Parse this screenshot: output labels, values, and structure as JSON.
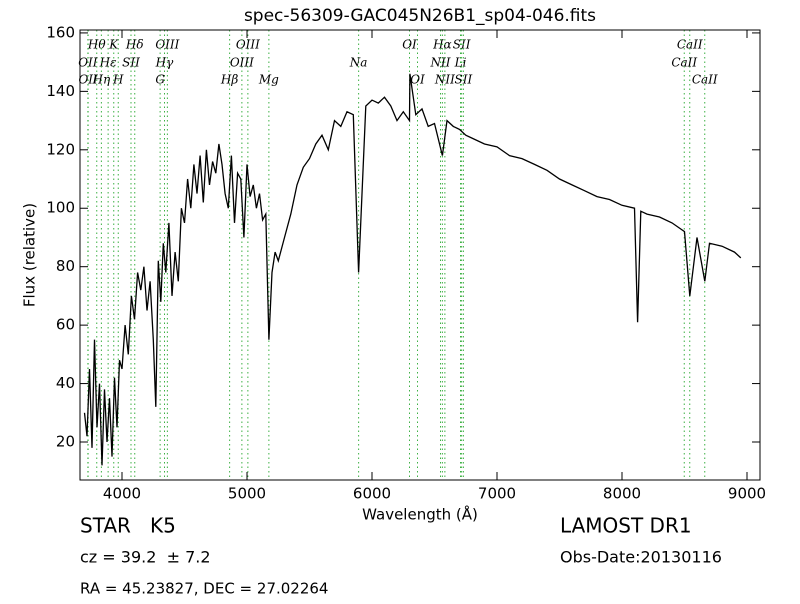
{
  "chart_data": {
    "type": "line",
    "title": "spec-56309-GAC045N26B1_sp04-046.fits",
    "x_label": "Wavelength (Å)",
    "y_label": "Flux (relative)",
    "color": "#000000",
    "line_color": "#3cb043",
    "xlim": [
      3664,
      9104
    ],
    "ylim": [
      7,
      161
    ],
    "xticks": [
      4000,
      5000,
      6000,
      7000,
      8000,
      9000
    ],
    "yticks": [
      20,
      40,
      60,
      80,
      100,
      120,
      140,
      160
    ],
    "x": [
      3700,
      3720,
      3740,
      3760,
      3780,
      3800,
      3820,
      3840,
      3860,
      3880,
      3900,
      3920,
      3940,
      3960,
      3980,
      4000,
      4025,
      4050,
      4075,
      4100,
      4125,
      4150,
      4175,
      4200,
      4225,
      4250,
      4270,
      4290,
      4310,
      4330,
      4350,
      4375,
      4400,
      4425,
      4450,
      4475,
      4500,
      4525,
      4550,
      4575,
      4600,
      4625,
      4650,
      4675,
      4700,
      4725,
      4750,
      4775,
      4800,
      4825,
      4850,
      4875,
      4900,
      4925,
      4950,
      4975,
      5000,
      5025,
      5050,
      5075,
      5100,
      5125,
      5150,
      5175,
      5200,
      5225,
      5250,
      5300,
      5350,
      5400,
      5450,
      5500,
      5550,
      5600,
      5650,
      5700,
      5750,
      5800,
      5850,
      5893,
      5950,
      6000,
      6050,
      6100,
      6150,
      6200,
      6250,
      6300,
      6303,
      6350,
      6400,
      6450,
      6500,
      6563,
      6600,
      6650,
      6700,
      6750,
      6800,
      6900,
      7000,
      7100,
      7200,
      7300,
      7400,
      7500,
      7600,
      7700,
      7800,
      7900,
      8000,
      8100,
      8125,
      8150,
      8200,
      8300,
      8400,
      8500,
      8542,
      8600,
      8662,
      8700,
      8800,
      8900,
      8950
    ],
    "values": [
      30,
      22,
      45,
      18,
      55,
      25,
      40,
      12,
      38,
      20,
      35,
      15,
      42,
      25,
      48,
      45,
      60,
      50,
      70,
      62,
      78,
      72,
      80,
      65,
      75,
      55,
      32,
      82,
      68,
      88,
      78,
      95,
      70,
      85,
      75,
      100,
      95,
      110,
      100,
      115,
      105,
      118,
      102,
      120,
      108,
      116,
      112,
      122,
      115,
      105,
      100,
      118,
      95,
      112,
      110,
      90,
      115,
      104,
      108,
      100,
      105,
      96,
      98,
      55,
      78,
      85,
      82,
      90,
      98,
      108,
      114,
      117,
      122,
      125,
      120,
      130,
      128,
      133,
      132,
      78,
      135,
      137,
      136,
      138,
      135,
      130,
      133,
      130,
      146,
      132,
      134,
      128,
      129,
      118,
      130,
      128,
      127,
      125,
      124,
      122,
      121,
      118,
      117,
      115,
      113,
      110,
      108,
      106,
      104,
      103,
      101,
      100,
      61,
      99,
      98,
      97,
      95,
      92,
      70,
      90,
      75,
      88,
      87,
      85,
      83
    ],
    "line_labels": [
      [
        {
          "text": "Hθ",
          "x": 3798
        },
        {
          "text": "K",
          "x": 3934
        },
        {
          "text": "Hδ",
          "x": 4102
        },
        {
          "text": "OIII",
          "x": 4363
        },
        {
          "text": "OIII",
          "x": 5007
        },
        {
          "text": "OI",
          "x": 6300
        },
        {
          "text": "Hα",
          "x": 6563
        },
        {
          "text": "SII",
          "x": 6717
        },
        {
          "text": "CaII",
          "x": 8542
        }
      ],
      [
        {
          "text": "OII",
          "x": 3727
        },
        {
          "text": "Hε",
          "x": 3889
        },
        {
          "text": "SII",
          "x": 4072
        },
        {
          "text": "Hγ",
          "x": 4340
        },
        {
          "text": "OIII",
          "x": 4959
        },
        {
          "text": "Na",
          "x": 5893
        },
        {
          "text": "NII",
          "x": 6548
        },
        {
          "text": "Li",
          "x": 6708
        },
        {
          "text": "CaII",
          "x": 8498
        }
      ],
      [
        {
          "text": "OII",
          "x": 3729
        },
        {
          "text": "Hη",
          "x": 3835
        },
        {
          "text": "H",
          "x": 3970
        },
        {
          "text": "G",
          "x": 4305
        },
        {
          "text": "Hβ",
          "x": 4861
        },
        {
          "text": "Mg",
          "x": 5175
        },
        {
          "text": "OI",
          "x": 6364
        },
        {
          "text": "NII",
          "x": 6583
        },
        {
          "text": "SII",
          "x": 6731
        },
        {
          "text": "CaII",
          "x": 8662
        }
      ]
    ],
    "object_class": "STAR   K5",
    "redshift": "cz = 39.2  ± 7.2",
    "coordinates": "RA = 45.23827, DEC = 27.02264",
    "survey": "LAMOST DR1",
    "obs_date": "Obs-Date:20130116"
  }
}
